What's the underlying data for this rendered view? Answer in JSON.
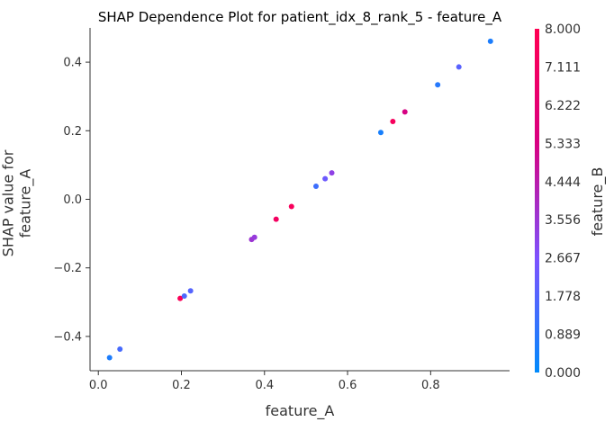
{
  "chart_data": {
    "type": "scatter",
    "title": "SHAP Dependence Plot for patient_idx_8_rank_5 - feature_A",
    "xlabel": "feature_A",
    "ylabel": "SHAP value for\nfeature_A",
    "xlim": [
      -0.02,
      0.99
    ],
    "ylim": [
      -0.5,
      0.5
    ],
    "xticks": [
      0.0,
      0.2,
      0.4,
      0.6,
      0.8
    ],
    "xtick_labels": [
      "0.0",
      "0.2",
      "0.4",
      "0.6",
      "0.8"
    ],
    "yticks": [
      -0.4,
      -0.2,
      0.0,
      0.2,
      0.4
    ],
    "ytick_labels": [
      "−0.4",
      "−0.2",
      "0.0",
      "0.2",
      "0.4"
    ],
    "grid": false,
    "colorbar": {
      "label": "feature_B",
      "min": 0.0,
      "max": 8.0,
      "ticks": [
        0.0,
        0.889,
        1.778,
        2.667,
        3.556,
        4.444,
        5.333,
        6.222,
        7.111,
        8.0
      ],
      "tick_labels": [
        "0.000",
        "0.889",
        "1.778",
        "2.667",
        "3.556",
        "4.444",
        "5.333",
        "6.222",
        "7.111",
        "8.000"
      ],
      "colormap": [
        "#008afb",
        "#7c52ff",
        "#d80080",
        "#ff0052"
      ]
    },
    "points": [
      {
        "x": 0.027,
        "y": -0.462,
        "c": 0.6
      },
      {
        "x": 0.052,
        "y": -0.437,
        "c": 1.5
      },
      {
        "x": 0.197,
        "y": -0.289,
        "c": 7.7
      },
      {
        "x": 0.207,
        "y": -0.282,
        "c": 1.6
      },
      {
        "x": 0.222,
        "y": -0.267,
        "c": 1.8
      },
      {
        "x": 0.369,
        "y": -0.117,
        "c": 3.6
      },
      {
        "x": 0.376,
        "y": -0.111,
        "c": 3.4
      },
      {
        "x": 0.428,
        "y": -0.058,
        "c": 7.2
      },
      {
        "x": 0.465,
        "y": -0.021,
        "c": 7.5
      },
      {
        "x": 0.524,
        "y": 0.038,
        "c": 1.3
      },
      {
        "x": 0.546,
        "y": 0.06,
        "c": 2.3
      },
      {
        "x": 0.562,
        "y": 0.077,
        "c": 3.2
      },
      {
        "x": 0.68,
        "y": 0.195,
        "c": 0.5
      },
      {
        "x": 0.709,
        "y": 0.227,
        "c": 7.4
      },
      {
        "x": 0.738,
        "y": 0.255,
        "c": 5.3
      },
      {
        "x": 0.817,
        "y": 0.334,
        "c": 0.8
      },
      {
        "x": 0.868,
        "y": 0.386,
        "c": 1.9
      },
      {
        "x": 0.944,
        "y": 0.461,
        "c": 0.6
      }
    ]
  }
}
